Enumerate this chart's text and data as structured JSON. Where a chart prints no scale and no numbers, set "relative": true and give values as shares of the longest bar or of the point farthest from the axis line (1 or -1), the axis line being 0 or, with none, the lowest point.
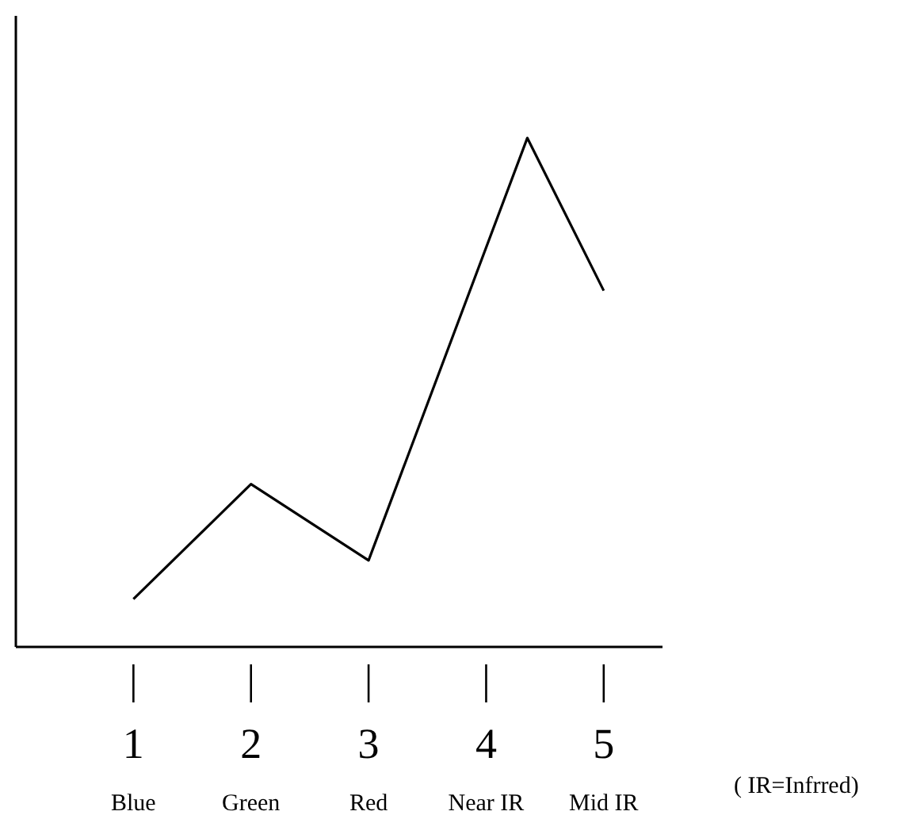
{
  "chart_data": {
    "type": "line",
    "relative": true,
    "x": [
      1,
      2,
      3,
      4.35,
      5
    ],
    "xlim": [
      0,
      5.5
    ],
    "xticks": [
      {
        "value": 1,
        "label": "1\nBlue"
      },
      {
        "value": 2,
        "label": "2\nGreen"
      },
      {
        "value": 3,
        "label": "3\nRed"
      },
      {
        "value": 4,
        "label": "4\nNear IR"
      },
      {
        "value": 5,
        "label": "5\nMid IR"
      }
    ],
    "series": [
      {
        "color": "#000000",
        "values": [
          0.094,
          0.32,
          0.17,
          1,
          0.7
        ]
      }
    ],
    "annotations": [
      "( IR=Infrred)"
    ],
    "grid": false,
    "legend": false,
    "marker": "none",
    "line_style": "solid"
  }
}
